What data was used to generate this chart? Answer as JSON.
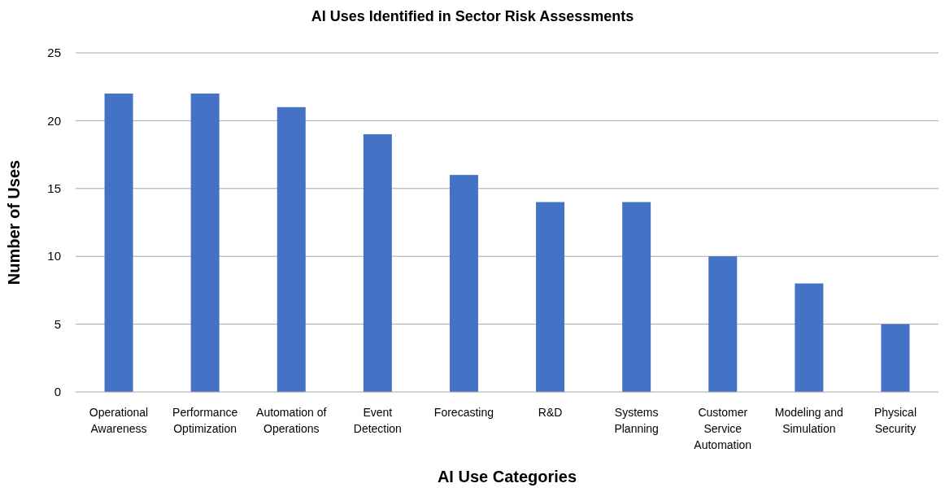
{
  "chart_data": {
    "type": "bar",
    "title": "AI Uses Identified in Sector Risk Assessments",
    "xlabel": "AI Use Categories",
    "ylabel": "Number of Uses",
    "categories": [
      "Operational Awareness",
      "Performance Optimization",
      "Automation of Operations",
      "Event Detection",
      "Forecasting",
      "R&D",
      "Systems Planning",
      "Customer Service Automation",
      "Modeling and Simulation",
      "Physical Security"
    ],
    "values": [
      22,
      22,
      21,
      19,
      16,
      14,
      14,
      10,
      8,
      5
    ],
    "color": "#4472c4",
    "ylim": [
      0,
      25
    ],
    "yticks": [
      0,
      5,
      10,
      15,
      20,
      25
    ],
    "grid": "y"
  }
}
